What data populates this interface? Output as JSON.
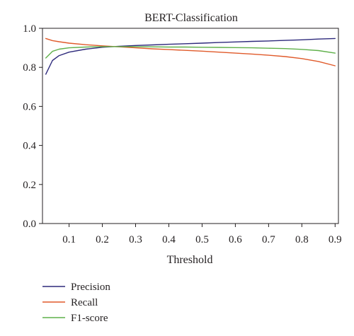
{
  "chart_data": {
    "type": "line",
    "title": "BERT-Classification",
    "xlabel": "Threshold",
    "ylabel": "",
    "xlim": [
      0.02,
      0.91
    ],
    "ylim": [
      0.0,
      1.0
    ],
    "x_ticks": [
      0.1,
      0.2,
      0.3,
      0.4,
      0.5,
      0.6,
      0.7,
      0.8,
      0.9
    ],
    "x_tick_labels": [
      "0.1",
      "0.2",
      "0.3",
      "0.4",
      "0.5",
      "0.6",
      "0.7",
      "0.8",
      "0.9"
    ],
    "y_ticks": [
      0.0,
      0.2,
      0.4,
      0.6,
      0.8,
      1.0
    ],
    "y_tick_labels": [
      "0.0",
      "0.2",
      "0.4",
      "0.6",
      "0.8",
      "1.0"
    ],
    "grid": false,
    "legend_position": "bottom-left",
    "x": [
      0.03,
      0.05,
      0.07,
      0.1,
      0.15,
      0.2,
      0.25,
      0.3,
      0.35,
      0.4,
      0.45,
      0.5,
      0.55,
      0.6,
      0.65,
      0.7,
      0.75,
      0.8,
      0.85,
      0.9
    ],
    "series": [
      {
        "name": "Precision",
        "color": "#2e2a7c",
        "values": [
          0.765,
          0.835,
          0.86,
          0.878,
          0.893,
          0.903,
          0.908,
          0.912,
          0.915,
          0.918,
          0.921,
          0.924,
          0.927,
          0.93,
          0.933,
          0.935,
          0.938,
          0.941,
          0.945,
          0.948
        ]
      },
      {
        "name": "Recall",
        "color": "#e05a2a",
        "values": [
          0.948,
          0.937,
          0.931,
          0.924,
          0.916,
          0.91,
          0.905,
          0.9,
          0.895,
          0.891,
          0.887,
          0.883,
          0.878,
          0.873,
          0.868,
          0.862,
          0.855,
          0.845,
          0.83,
          0.808
        ]
      },
      {
        "name": "F1-score",
        "color": "#5fb04a",
        "values": [
          0.848,
          0.882,
          0.893,
          0.9,
          0.904,
          0.906,
          0.906,
          0.906,
          0.905,
          0.904,
          0.904,
          0.903,
          0.902,
          0.901,
          0.9,
          0.898,
          0.896,
          0.892,
          0.886,
          0.873
        ]
      }
    ]
  }
}
